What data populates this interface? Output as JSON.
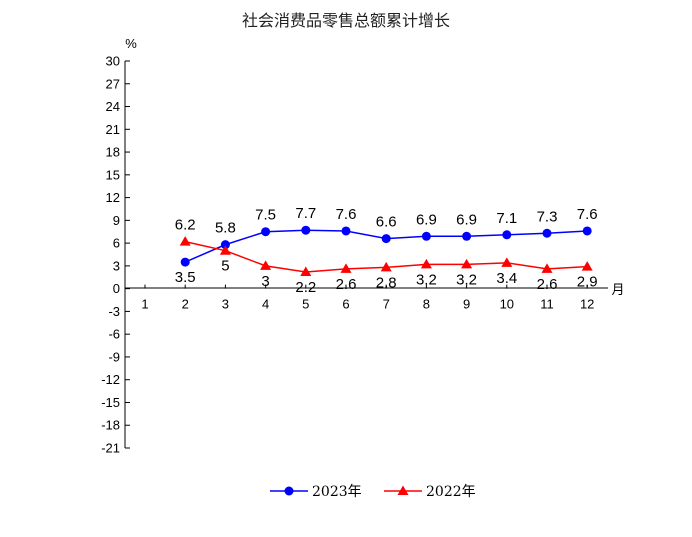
{
  "chart_data": {
    "type": "line",
    "title": "社会消费品零售总额累计增长",
    "y_unit": "%",
    "x_unit": "月",
    "ylim": [
      -21,
      30
    ],
    "y_ticks": [
      30,
      27,
      24,
      21,
      18,
      15,
      12,
      9,
      6,
      3,
      0,
      -3,
      -6,
      -9,
      -12,
      -15,
      -18,
      -21
    ],
    "categories": [
      "1",
      "2",
      "3",
      "4",
      "5",
      "6",
      "7",
      "8",
      "9",
      "10",
      "11",
      "12"
    ],
    "grid": false,
    "legend_position": "bottom",
    "series": [
      {
        "name": "2023年",
        "color": "#0000ff",
        "marker": "circle",
        "x": [
          "2",
          "3",
          "4",
          "5",
          "6",
          "7",
          "8",
          "9",
          "10",
          "11",
          "12"
        ],
        "values": [
          3.5,
          5.8,
          7.5,
          7.7,
          7.6,
          6.6,
          6.9,
          6.9,
          7.1,
          7.3,
          7.6
        ],
        "labels": [
          "3.5",
          "5.8",
          "7.5",
          "7.7",
          "7.6",
          "6.6",
          "6.9",
          "6.9",
          "7.1",
          "7.3",
          "7.6"
        ]
      },
      {
        "name": "2022年",
        "color": "#ff0000",
        "marker": "triangle",
        "x": [
          "2",
          "3",
          "4",
          "5",
          "6",
          "7",
          "8",
          "9",
          "10",
          "11",
          "12"
        ],
        "values": [
          6.2,
          5,
          3,
          2.2,
          2.6,
          2.8,
          3.2,
          3.2,
          3.4,
          2.6,
          2.9
        ],
        "labels": [
          "6.2",
          "5",
          "3",
          "2.2",
          "2.6",
          "2.8",
          "3.2",
          "3.2",
          "3.4",
          "2.6",
          "2.9"
        ]
      }
    ]
  }
}
